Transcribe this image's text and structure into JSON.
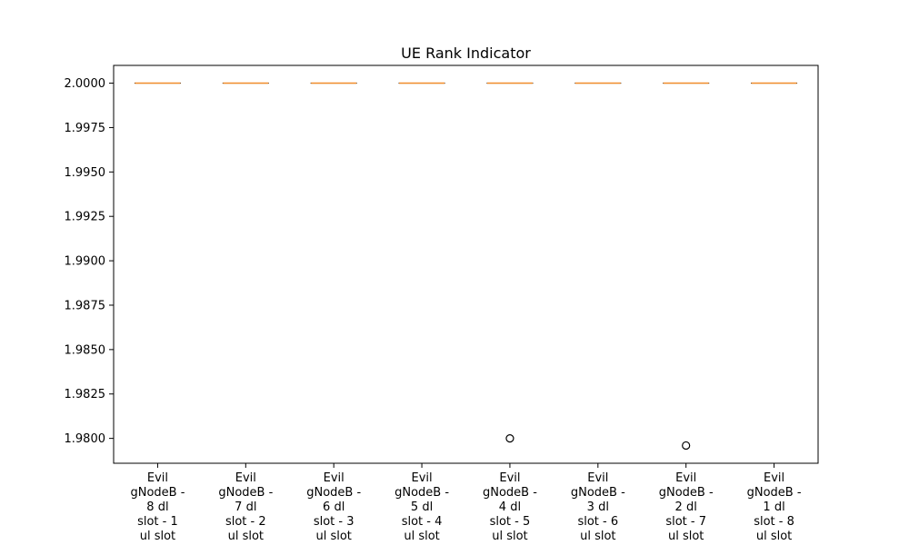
{
  "chart_data": {
    "type": "box",
    "title": "UE Rank Indicator",
    "xlabel": "",
    "ylabel": "",
    "ylim": [
      1.9786,
      2.001
    ],
    "yticks": [
      "2.0000",
      "1.9975",
      "1.9950",
      "1.9925",
      "1.9900",
      "1.9875",
      "1.9850",
      "1.9825",
      "1.9800"
    ],
    "ytick_values": [
      2.0,
      1.9975,
      1.995,
      1.9925,
      1.99,
      1.9875,
      1.985,
      1.9825,
      1.98
    ],
    "grid": false,
    "categories": [
      [
        "Evil",
        "gNodeB -",
        "8 dl",
        "slot - 1",
        "ul slot"
      ],
      [
        "Evil",
        "gNodeB -",
        "7 dl",
        "slot - 2",
        "ul slot"
      ],
      [
        "Evil",
        "gNodeB -",
        "6 dl",
        "slot - 3",
        "ul slot"
      ],
      [
        "Evil",
        "gNodeB -",
        "5 dl",
        "slot - 4",
        "ul slot"
      ],
      [
        "Evil",
        "gNodeB -",
        "4 dl",
        "slot - 5",
        "ul slot"
      ],
      [
        "Evil",
        "gNodeB -",
        "3 dl",
        "slot - 6",
        "ul slot"
      ],
      [
        "Evil",
        "gNodeB -",
        "2 dl",
        "slot - 7",
        "ul slot"
      ],
      [
        "Evil",
        "gNodeB -",
        "1 dl",
        "slot - 8",
        "ul slot"
      ]
    ],
    "boxes": [
      {
        "min": 2.0,
        "q1": 2.0,
        "median": 2.0,
        "q3": 2.0,
        "max": 2.0,
        "outliers": []
      },
      {
        "min": 2.0,
        "q1": 2.0,
        "median": 2.0,
        "q3": 2.0,
        "max": 2.0,
        "outliers": []
      },
      {
        "min": 2.0,
        "q1": 2.0,
        "median": 2.0,
        "q3": 2.0,
        "max": 2.0,
        "outliers": []
      },
      {
        "min": 2.0,
        "q1": 2.0,
        "median": 2.0,
        "q3": 2.0,
        "max": 2.0,
        "outliers": []
      },
      {
        "min": 2.0,
        "q1": 2.0,
        "median": 2.0,
        "q3": 2.0,
        "max": 2.0,
        "outliers": [
          1.98
        ]
      },
      {
        "min": 2.0,
        "q1": 2.0,
        "median": 2.0,
        "q3": 2.0,
        "max": 2.0,
        "outliers": []
      },
      {
        "min": 2.0,
        "q1": 2.0,
        "median": 2.0,
        "q3": 2.0,
        "max": 2.0,
        "outliers": [
          1.9796
        ]
      },
      {
        "min": 2.0,
        "q1": 2.0,
        "median": 2.0,
        "q3": 2.0,
        "max": 2.0,
        "outliers": []
      }
    ],
    "colors": {
      "median": "#f28e2b",
      "box": "#000000",
      "outlier": "#000000"
    }
  }
}
